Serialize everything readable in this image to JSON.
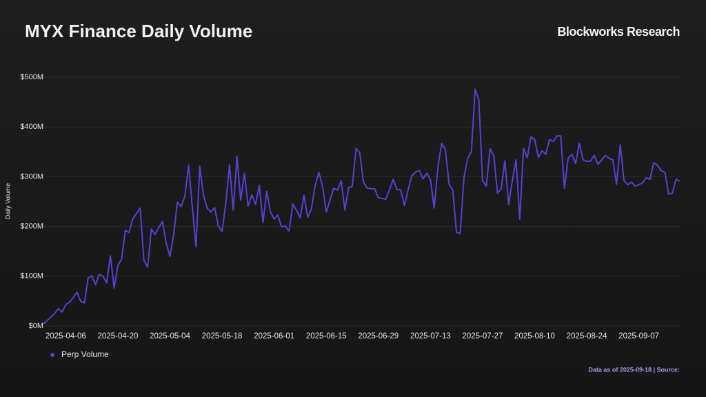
{
  "chart_data": {
    "type": "line",
    "title": "MYX Finance Daily Volume",
    "brand": "Blockworks Research",
    "ylabel": "Daily Volume",
    "footer": "Data as of 2025-09-18 | Source:",
    "x": [
      "2025-03-31",
      "2025-04-01",
      "2025-04-02",
      "2025-04-03",
      "2025-04-04",
      "2025-04-05",
      "2025-04-06",
      "2025-04-07",
      "2025-04-08",
      "2025-04-09",
      "2025-04-10",
      "2025-04-11",
      "2025-04-12",
      "2025-04-13",
      "2025-04-14",
      "2025-04-15",
      "2025-04-16",
      "2025-04-17",
      "2025-04-18",
      "2025-04-19",
      "2025-04-20",
      "2025-04-21",
      "2025-04-22",
      "2025-04-23",
      "2025-04-24",
      "2025-04-25",
      "2025-04-26",
      "2025-04-27",
      "2025-04-28",
      "2025-04-29",
      "2025-04-30",
      "2025-05-01",
      "2025-05-02",
      "2025-05-03",
      "2025-05-04",
      "2025-05-05",
      "2025-05-06",
      "2025-05-07",
      "2025-05-08",
      "2025-05-09",
      "2025-05-10",
      "2025-05-11",
      "2025-05-12",
      "2025-05-13",
      "2025-05-14",
      "2025-05-15",
      "2025-05-16",
      "2025-05-17",
      "2025-05-18",
      "2025-05-19",
      "2025-05-20",
      "2025-05-21",
      "2025-05-22",
      "2025-05-23",
      "2025-05-24",
      "2025-05-25",
      "2025-05-26",
      "2025-05-27",
      "2025-05-28",
      "2025-05-29",
      "2025-05-30",
      "2025-05-31",
      "2025-06-01",
      "2025-06-02",
      "2025-06-03",
      "2025-06-04",
      "2025-06-05",
      "2025-06-06",
      "2025-06-07",
      "2025-06-08",
      "2025-06-09",
      "2025-06-10",
      "2025-06-11",
      "2025-06-12",
      "2025-06-13",
      "2025-06-14",
      "2025-06-15",
      "2025-06-16",
      "2025-06-17",
      "2025-06-18",
      "2025-06-19",
      "2025-06-20",
      "2025-06-21",
      "2025-06-22",
      "2025-06-23",
      "2025-06-24",
      "2025-06-25",
      "2025-06-26",
      "2025-06-27",
      "2025-06-28",
      "2025-06-29",
      "2025-06-30",
      "2025-07-01",
      "2025-07-02",
      "2025-07-03",
      "2025-07-04",
      "2025-07-05",
      "2025-07-06",
      "2025-07-07",
      "2025-07-08",
      "2025-07-09",
      "2025-07-10",
      "2025-07-11",
      "2025-07-12",
      "2025-07-13",
      "2025-07-14",
      "2025-07-15",
      "2025-07-16",
      "2025-07-17",
      "2025-07-18",
      "2025-07-19",
      "2025-07-20",
      "2025-07-21",
      "2025-07-22",
      "2025-07-23",
      "2025-07-24",
      "2025-07-25",
      "2025-07-26",
      "2025-07-27",
      "2025-07-28",
      "2025-07-29",
      "2025-07-30",
      "2025-07-31",
      "2025-08-01",
      "2025-08-02",
      "2025-08-03",
      "2025-08-04",
      "2025-08-05",
      "2025-08-06",
      "2025-08-07",
      "2025-08-08",
      "2025-08-09",
      "2025-08-10",
      "2025-08-11",
      "2025-08-12",
      "2025-08-13",
      "2025-08-14",
      "2025-08-15",
      "2025-08-16",
      "2025-08-17",
      "2025-08-18",
      "2025-08-19",
      "2025-08-20",
      "2025-08-21",
      "2025-08-22",
      "2025-08-23",
      "2025-08-24",
      "2025-08-25",
      "2025-08-26",
      "2025-08-27",
      "2025-08-28",
      "2025-08-29",
      "2025-08-30",
      "2025-08-31",
      "2025-09-01",
      "2025-09-02",
      "2025-09-03",
      "2025-09-04",
      "2025-09-05",
      "2025-09-06",
      "2025-09-07",
      "2025-09-08",
      "2025-09-09",
      "2025-09-10",
      "2025-09-11",
      "2025-09-12",
      "2025-09-13",
      "2025-09-14",
      "2025-09-15",
      "2025-09-16",
      "2025-09-17",
      "2025-09-18"
    ],
    "series": [
      {
        "name": "Perp Volume",
        "color": "#5a3fd4",
        "values": [
          4,
          11,
          18,
          25,
          35,
          28,
          43,
          48,
          57,
          68,
          50,
          46,
          96,
          101,
          83,
          104,
          100,
          87,
          141,
          76,
          122,
          134,
          192,
          188,
          215,
          226,
          237,
          132,
          118,
          195,
          184,
          198,
          210,
          166,
          140,
          184,
          249,
          240,
          260,
          323,
          240,
          159,
          321,
          263,
          237,
          229,
          238,
          201,
          190,
          247,
          324,
          233,
          341,
          253,
          307,
          241,
          264,
          244,
          283,
          208,
          271,
          229,
          215,
          223,
          199,
          201,
          191,
          245,
          233,
          217,
          263,
          219,
          235,
          281,
          309,
          281,
          229,
          253,
          277,
          273,
          292,
          233,
          278,
          281,
          357,
          348,
          289,
          277,
          276,
          276,
          258,
          256,
          255,
          274,
          295,
          274,
          274,
          242,
          274,
          302,
          309,
          313,
          296,
          307,
          294,
          237,
          319,
          367,
          355,
          285,
          273,
          188,
          186,
          298,
          337,
          350,
          476,
          454,
          292,
          281,
          356,
          343,
          267,
          276,
          332,
          244,
          292,
          334,
          215,
          357,
          338,
          380,
          375,
          339,
          352,
          345,
          375,
          371,
          382,
          382,
          277,
          337,
          345,
          327,
          367,
          334,
          331,
          331,
          343,
          325,
          334,
          343,
          337,
          334,
          285,
          364,
          292,
          284,
          289,
          281,
          284,
          288,
          298,
          295,
          328,
          323,
          312,
          309,
          265,
          267,
          295,
          291
        ]
      }
    ],
    "xlim": [
      "2025-03-31",
      "2025-09-18"
    ],
    "xticks": [
      "2025-04-06",
      "2025-04-20",
      "2025-05-04",
      "2025-05-18",
      "2025-06-01",
      "2025-06-15",
      "2025-06-29",
      "2025-07-13",
      "2025-07-27",
      "2025-08-10",
      "2025-08-24",
      "2025-09-07"
    ],
    "ylim": [
      0,
      500
    ],
    "yticks": [
      {
        "value": 0,
        "label": "$0M"
      },
      {
        "value": 100,
        "label": "$100M"
      },
      {
        "value": 200,
        "label": "$200M"
      },
      {
        "value": 300,
        "label": "$300M"
      },
      {
        "value": 400,
        "label": "$400M"
      },
      {
        "value": 500,
        "label": "$500M"
      }
    ],
    "grid": true
  }
}
